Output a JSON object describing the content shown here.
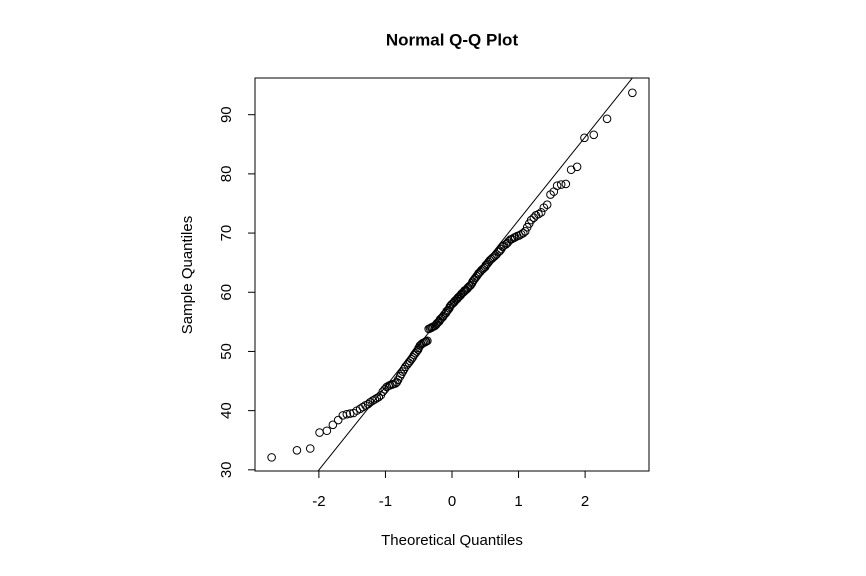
{
  "chart_data": {
    "type": "scatter",
    "title": "Normal Q-Q Plot",
    "x_label": "Theoretical Quantiles",
    "y_label": "Sample Quantiles",
    "x": [
      -2.71,
      -2.33,
      -2.13,
      -1.99,
      -1.88,
      -1.79,
      -1.71,
      -1.64,
      -1.58,
      -1.53,
      -1.48,
      -1.43,
      -1.38,
      -1.34,
      -1.3,
      -1.26,
      -1.23,
      -1.19,
      -1.16,
      -1.13,
      -1.1,
      -1.07,
      -1.04,
      -1.01,
      -0.98,
      -0.95,
      -0.93,
      -0.9,
      -0.88,
      -0.85,
      -0.83,
      -0.81,
      -0.78,
      -0.76,
      -0.74,
      -0.72,
      -0.7,
      -0.67,
      -0.65,
      -0.63,
      -0.61,
      -0.59,
      -0.57,
      -0.55,
      -0.53,
      -0.51,
      -0.5,
      -0.48,
      -0.46,
      -0.44,
      -0.42,
      -0.4,
      -0.39,
      -0.37,
      -0.35,
      -0.33,
      -0.31,
      -0.3,
      -0.28,
      -0.26,
      -0.24,
      -0.23,
      -0.21,
      -0.19,
      -0.18,
      -0.16,
      -0.14,
      -0.13,
      -0.11,
      -0.09,
      -0.08,
      -0.06,
      -0.04,
      -0.03,
      -0.01,
      0.01,
      0.03,
      0.04,
      0.06,
      0.08,
      0.09,
      0.11,
      0.13,
      0.14,
      0.16,
      0.18,
      0.19,
      0.21,
      0.23,
      0.24,
      0.26,
      0.28,
      0.3,
      0.31,
      0.33,
      0.35,
      0.37,
      0.39,
      0.4,
      0.42,
      0.44,
      0.46,
      0.48,
      0.5,
      0.51,
      0.53,
      0.55,
      0.57,
      0.59,
      0.61,
      0.63,
      0.65,
      0.67,
      0.7,
      0.72,
      0.74,
      0.76,
      0.78,
      0.81,
      0.83,
      0.85,
      0.88,
      0.9,
      0.93,
      0.95,
      0.98,
      1.01,
      1.04,
      1.07,
      1.1,
      1.13,
      1.16,
      1.19,
      1.23,
      1.26,
      1.3,
      1.34,
      1.38,
      1.43,
      1.48,
      1.53,
      1.58,
      1.64,
      1.71,
      1.79,
      1.88,
      1.99,
      2.13,
      2.33,
      2.71
    ],
    "values": [
      32.1,
      33.3,
      33.6,
      36.3,
      36.6,
      37.6,
      38.4,
      39.2,
      39.4,
      39.5,
      39.6,
      40.0,
      40.3,
      40.6,
      40.9,
      41.1,
      41.4,
      41.7,
      41.9,
      42.1,
      42.3,
      42.6,
      43.2,
      43.6,
      44.0,
      44.2,
      44.3,
      44.4,
      44.5,
      44.6,
      44.8,
      45.2,
      45.8,
      46.2,
      46.6,
      47.0,
      47.4,
      47.8,
      48.1,
      48.4,
      48.7,
      49.0,
      49.4,
      49.7,
      50.0,
      50.3,
      50.6,
      51.0,
      51.2,
      51.4,
      51.5,
      51.6,
      51.7,
      51.8,
      53.8,
      53.9,
      54.0,
      54.1,
      54.2,
      54.3,
      54.5,
      54.7,
      54.9,
      55.1,
      55.4,
      55.6,
      55.8,
      56.0,
      56.3,
      56.5,
      56.8,
      57.0,
      57.3,
      57.6,
      57.9,
      58.1,
      58.3,
      58.5,
      58.7,
      58.9,
      59.1,
      59.3,
      59.5,
      59.7,
      59.9,
      60.1,
      60.3,
      60.4,
      60.6,
      60.8,
      61.0,
      61.2,
      61.5,
      61.8,
      62.1,
      62.4,
      62.7,
      63.0,
      63.2,
      63.4,
      63.7,
      63.9,
      64.1,
      64.3,
      64.6,
      64.8,
      65.1,
      65.4,
      65.6,
      65.8,
      66.0,
      66.2,
      66.4,
      66.8,
      67.0,
      67.3,
      67.7,
      67.9,
      68.1,
      68.3,
      68.6,
      68.9,
      69.0,
      69.2,
      69.3,
      69.5,
      69.6,
      69.8,
      70.0,
      70.3,
      71.0,
      71.6,
      72.2,
      72.6,
      73.0,
      73.2,
      73.5,
      74.3,
      74.8,
      76.5,
      77.0,
      78.0,
      78.2,
      78.3,
      80.7,
      81.2,
      86.1,
      86.6,
      89.3,
      93.7
    ],
    "color": "#000000",
    "reference_line": {
      "intercept": 58.1,
      "slope": 14.06
    },
    "xlim": [
      -2.96,
      2.96
    ],
    "ylim": [
      29.8,
      96.2
    ],
    "xticks": [
      -2,
      -1,
      0,
      1,
      2
    ],
    "yticks": [
      30,
      40,
      50,
      60,
      70,
      80,
      90
    ],
    "grid": false
  }
}
